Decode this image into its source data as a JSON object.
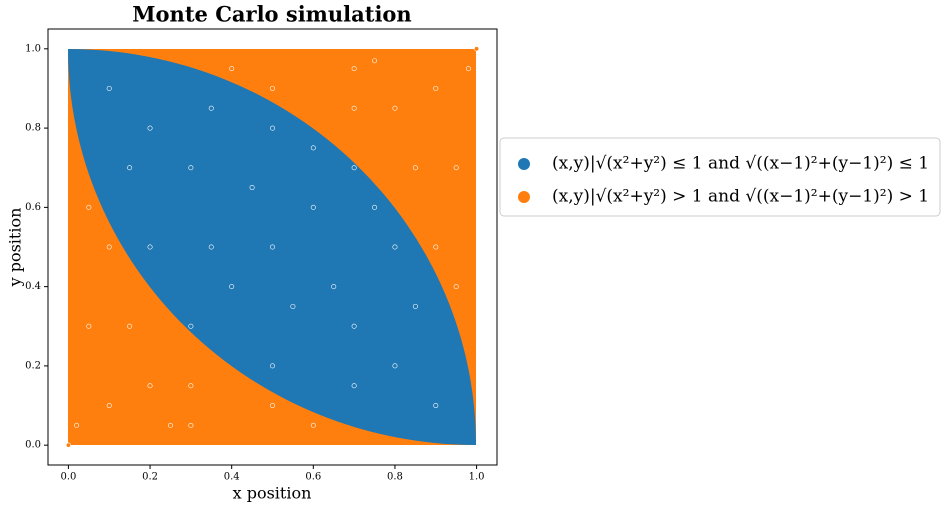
{
  "chart_data": {
    "type": "scatter",
    "title": "Monte Carlo simulation",
    "x_label": "x position",
    "y_label": "y position",
    "xlim": [
      -0.05,
      1.05
    ],
    "ylim": [
      -0.05,
      1.05
    ],
    "xticks": [
      {
        "value": 0,
        "label": "0.0"
      },
      {
        "value": 0.2,
        "label": "0.2"
      },
      {
        "value": 0.4,
        "label": "0.4"
      },
      {
        "value": 0.6,
        "label": "0.6"
      },
      {
        "value": 0.8,
        "label": "0.8"
      },
      {
        "value": 1,
        "label": "1.0"
      }
    ],
    "yticks": [
      {
        "value": 0,
        "label": "0.0"
      },
      {
        "value": 0.2,
        "label": "0.2"
      },
      {
        "value": 0.4,
        "label": "0.4"
      },
      {
        "value": 0.6,
        "label": "0.6"
      },
      {
        "value": 0.8,
        "label": "0.8"
      },
      {
        "value": 1,
        "label": "1.0"
      }
    ],
    "legend_position": "right",
    "series": [
      {
        "name": "(x,y)|√(x²+y²) ≤ 1 and √((x−1)²+(y−1)²) ≤ 1",
        "color": "#1f77b4",
        "x": [
          0.5,
          0.3,
          0.7,
          0.2,
          0.8,
          0.4,
          0.6,
          0.1,
          0.9,
          0.35,
          0.5,
          0.8,
          0.5,
          0.2,
          0.65,
          0.45,
          0.15,
          0.7,
          0.55,
          0.35,
          0.85,
          0.6,
          0.75,
          0.3,
          0.7
        ],
        "y": [
          0.5,
          0.7,
          0.3,
          0.8,
          0.2,
          0.4,
          0.6,
          0.9,
          0.1,
          0.5,
          0.8,
          0.5,
          0.2,
          0.5,
          0.4,
          0.65,
          0.7,
          0.15,
          0.35,
          0.85,
          0.35,
          0.75,
          0.6,
          0.3,
          0.7
        ]
      },
      {
        "name": "(x,y)|√(x²+y²) > 1 and √((x−1)²+(y−1)²) > 1",
        "color": "#ff7f0e",
        "x": [
          0.1,
          0.9,
          0.05,
          0.3,
          0.95,
          0.7,
          0.2,
          0.8,
          0.1,
          0.5,
          0.9,
          0.5,
          0.02,
          0.98,
          0.15,
          0.3,
          0.85,
          0.7,
          0.05,
          0.6,
          0.95,
          0.4,
          0,
          1,
          0.25,
          0.75
        ],
        "y": [
          0.1,
          0.9,
          0.3,
          0.05,
          0.7,
          0.95,
          0.15,
          0.85,
          0.5,
          0.1,
          0.5,
          0.9,
          0.05,
          0.95,
          0.3,
          0.15,
          0.7,
          0.85,
          0.6,
          0.05,
          0.4,
          0.95,
          0,
          1,
          0.05,
          0.97
        ]
      }
    ]
  }
}
